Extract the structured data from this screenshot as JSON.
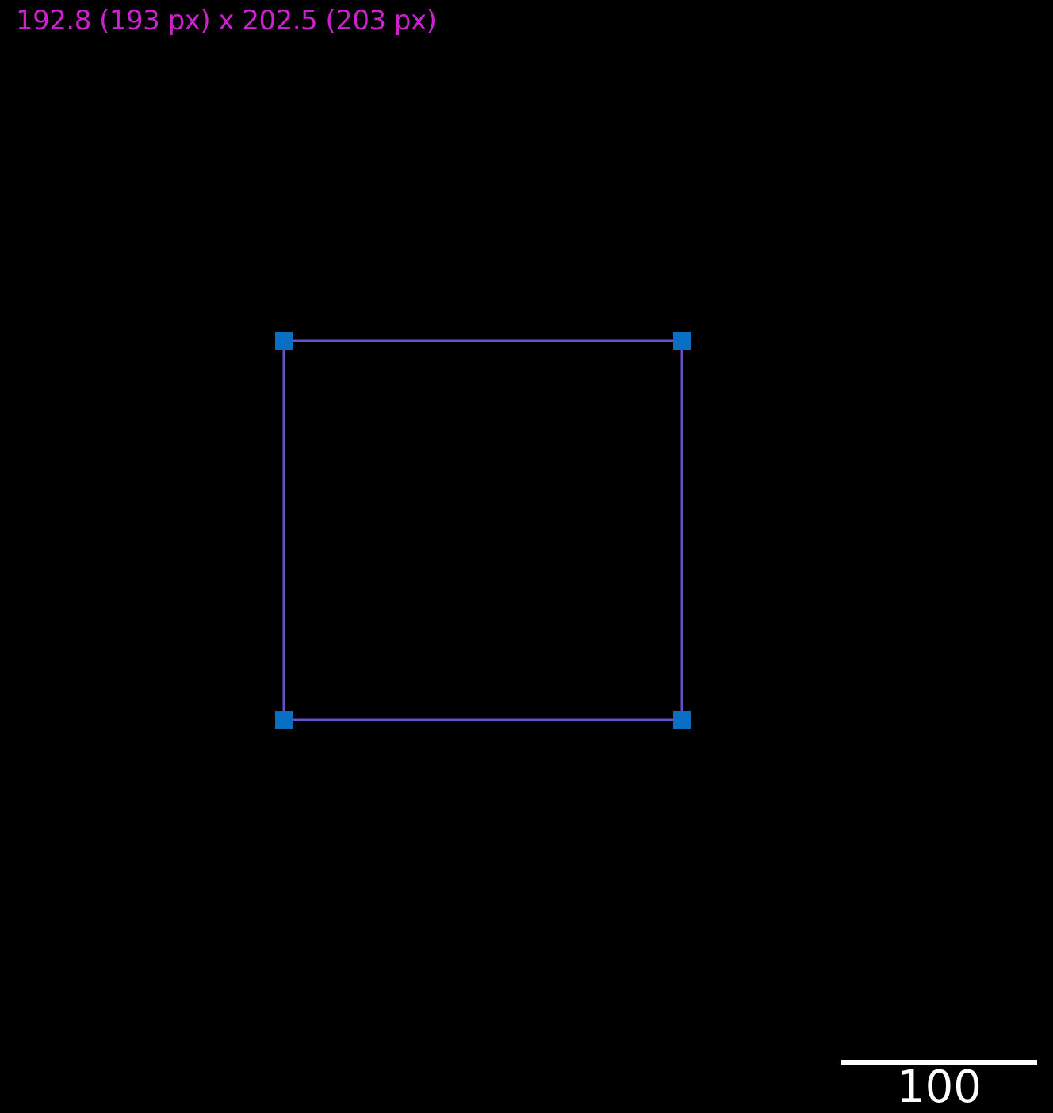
{
  "measurement": {
    "label": "192.8 (193 px) x 202.5 (203 px)",
    "color": "#cc22cc"
  },
  "roi": {
    "stroke_color": "#6a4fd0",
    "handle_color": "#0a6fc2",
    "handles": [
      "top-left",
      "top-right",
      "bottom-left",
      "bottom-right"
    ]
  },
  "scale_bar": {
    "value": "100",
    "color": "#ffffff"
  },
  "background": "#000000"
}
